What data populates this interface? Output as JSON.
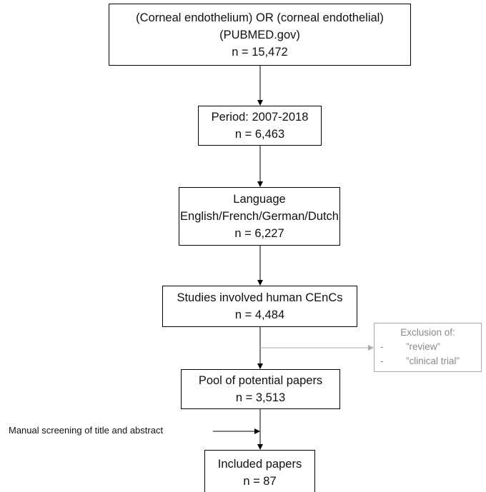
{
  "nodes": [
    {
      "lines": [
        "(Corneal endothelium) OR (corneal endothelial)",
        "(PUBMED.gov)",
        "n = 15,472"
      ]
    },
    {
      "lines": [
        "Period: 2007-2018",
        "n = 6,463"
      ]
    },
    {
      "lines": [
        "Language",
        "English/French/German/Dutch",
        "n = 6,227"
      ]
    },
    {
      "lines": [
        "Studies involved human CEnCs",
        "n = 4,484"
      ]
    },
    {
      "lines": [
        "Pool of potential papers",
        "n = 3,513"
      ]
    },
    {
      "lines": [
        "Included papers",
        "n = 87"
      ]
    }
  ],
  "exclusion": {
    "title": "Exclusion of:",
    "items": [
      "”review”",
      "”clinical trial”"
    ]
  },
  "side_note": "Manual screening of title and abstract"
}
